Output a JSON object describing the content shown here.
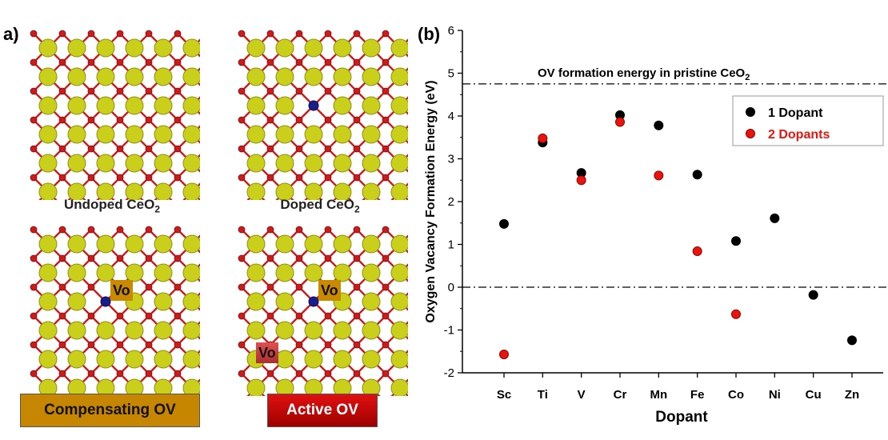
{
  "panel_a": {
    "label": "a)",
    "captions": {
      "undoped_text": "Undoped CeO",
      "doped_text": "Doped CeO",
      "sub": "2"
    },
    "vo_label": "Vo",
    "banners": {
      "compensating": "Compensating OV",
      "active": "Active OV"
    },
    "colors": {
      "ce": "#c9cf1a",
      "o": "#cc1b1b",
      "bond": "#cc1b1b",
      "dopant": "#1a1e8c",
      "vo_compensating": "#c98a00",
      "vo_active": "#e05050",
      "banner_compensating": "#c68600",
      "banner_active": "#cc0a0a"
    }
  },
  "panel_b": {
    "label": "(b)"
  },
  "chart_data": {
    "type": "scatter",
    "categories": [
      "Sc",
      "Ti",
      "V",
      "Cr",
      "Mn",
      "Fe",
      "Co",
      "Ni",
      "Cu",
      "Zn"
    ],
    "series": [
      {
        "name": "1 Dopant",
        "color": "#000000",
        "values": [
          1.48,
          3.38,
          2.67,
          4.02,
          3.78,
          2.63,
          1.08,
          1.61,
          -0.18,
          -1.24
        ]
      },
      {
        "name": "2 Dopants",
        "color": "#e8150e",
        "values": [
          -1.57,
          3.48,
          2.5,
          3.86,
          2.61,
          0.84,
          -0.63,
          null,
          null,
          null
        ]
      }
    ],
    "reference_lines": [
      {
        "y": 4.75,
        "label": "OV formation energy in pristine CeO",
        "label_sub": "2"
      },
      {
        "y": 0,
        "label": ""
      }
    ],
    "ylim": [
      -2,
      6
    ],
    "yticks": [
      -2,
      -1,
      0,
      1,
      2,
      3,
      4,
      5,
      6
    ],
    "xlabel": "Dopant",
    "ylabel": "Oxygen Vacancy Formation Energy (eV)",
    "legend_position": "right"
  }
}
